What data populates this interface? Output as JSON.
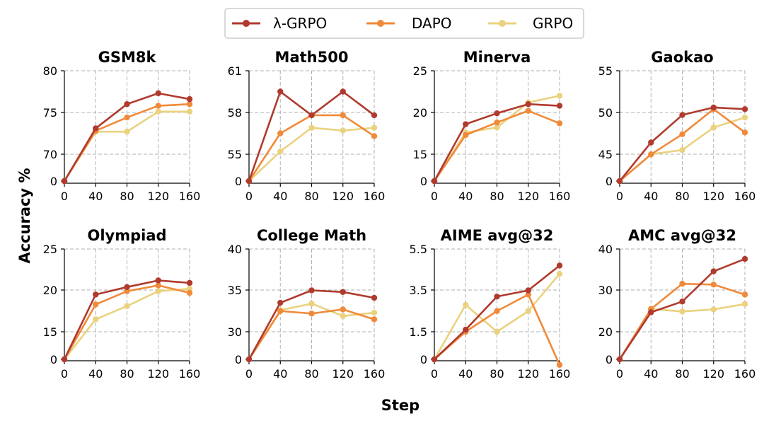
{
  "chart_data": {
    "type": "line",
    "xlabel": "Step",
    "ylabel": "Accuracy %",
    "legend": [
      {
        "name": "λ-GRPO",
        "color": "#b03a2e"
      },
      {
        "name": "DAPO",
        "color": "#f08a3a"
      },
      {
        "name": "GRPO",
        "color": "#ead27f"
      }
    ],
    "panels": [
      {
        "title": "GSM8k",
        "x": [
          0,
          40,
          80,
          120,
          160
        ],
        "yticks": [
          "0",
          "70",
          "75",
          "80"
        ],
        "series": [
          {
            "name": "λ-GRPO",
            "values": [
              0,
              73.1,
              76.0,
              77.3,
              76.6
            ]
          },
          {
            "name": "DAPO",
            "values": [
              0,
              72.8,
              74.4,
              75.8,
              76.0
            ]
          },
          {
            "name": "GRPO",
            "values": [
              0,
              72.7,
              72.7,
              75.1,
              75.1
            ]
          }
        ]
      },
      {
        "title": "Math500",
        "x": [
          0,
          40,
          80,
          120,
          160
        ],
        "yticks": [
          "0",
          "55",
          "58",
          "61"
        ],
        "series": [
          {
            "name": "λ-GRPO",
            "values": [
              0,
              59.5,
              57.8,
              59.5,
              57.8
            ]
          },
          {
            "name": "DAPO",
            "values": [
              0,
              56.5,
              57.8,
              57.8,
              56.3
            ]
          },
          {
            "name": "GRPO",
            "values": [
              0,
              55.2,
              56.9,
              56.7,
              56.9
            ]
          }
        ]
      },
      {
        "title": "Minerva",
        "x": [
          0,
          40,
          80,
          120,
          160
        ],
        "yticks": [
          "0",
          "15",
          "20",
          "25"
        ],
        "series": [
          {
            "name": "λ-GRPO",
            "values": [
              0,
              18.6,
              19.9,
              21.0,
              20.8
            ]
          },
          {
            "name": "DAPO",
            "values": [
              0,
              17.3,
              18.8,
              20.2,
              18.7
            ]
          },
          {
            "name": "GRPO",
            "values": [
              0,
              17.6,
              18.2,
              21.2,
              22.0
            ]
          }
        ]
      },
      {
        "title": "Gaokao",
        "x": [
          0,
          40,
          80,
          120,
          160
        ],
        "yticks": [
          "0",
          "45",
          "50",
          "55"
        ],
        "series": [
          {
            "name": "λ-GRPO",
            "values": [
              0,
              46.4,
              49.7,
              50.6,
              50.4
            ]
          },
          {
            "name": "DAPO",
            "values": [
              0,
              44.6,
              47.4,
              50.4,
              47.6
            ]
          },
          {
            "name": "GRPO",
            "values": [
              0,
              45.0,
              45.5,
              48.2,
              49.4
            ]
          }
        ]
      },
      {
        "title": "Olympiad",
        "x": [
          0,
          40,
          80,
          120,
          160
        ],
        "yticks": [
          "0",
          "15",
          "20",
          "25"
        ],
        "series": [
          {
            "name": "λ-GRPO",
            "values": [
              0,
              19.5,
              20.4,
              21.2,
              20.9
            ]
          },
          {
            "name": "DAPO",
            "values": [
              0,
              18.3,
              19.9,
              20.6,
              19.7
            ]
          },
          {
            "name": "GRPO",
            "values": [
              0,
              16.5,
              18.1,
              19.9,
              20.2
            ]
          }
        ]
      },
      {
        "title": "College Math",
        "x": [
          0,
          40,
          80,
          120,
          160
        ],
        "yticks": [
          "0",
          "30",
          "35",
          "40"
        ],
        "series": [
          {
            "name": "λ-GRPO",
            "values": [
              0,
              33.5,
              35.0,
              34.8,
              34.1
            ]
          },
          {
            "name": "DAPO",
            "values": [
              0,
              32.5,
              32.2,
              32.7,
              31.5
            ]
          },
          {
            "name": "GRPO",
            "values": [
              0,
              32.6,
              33.4,
              31.9,
              32.3
            ]
          }
        ]
      },
      {
        "title": "AIME avg@32",
        "x": [
          0,
          40,
          80,
          120,
          160
        ],
        "yticks": [
          "0",
          "1.5",
          "3.5",
          "5.5"
        ],
        "series": [
          {
            "name": "λ-GRPO",
            "values": [
              0,
              1.6,
              3.2,
              3.5,
              4.7
            ]
          },
          {
            "name": "DAPO",
            "values": [
              0,
              1.5,
              2.5,
              3.3,
              -0.3
            ]
          },
          {
            "name": "GRPO",
            "values": [
              0,
              2.8,
              1.5,
              2.5,
              4.3
            ]
          }
        ]
      },
      {
        "title": "AMC avg@32",
        "x": [
          0,
          40,
          80,
          120,
          160
        ],
        "yticks": [
          "0",
          "20",
          "30",
          "40"
        ],
        "series": [
          {
            "name": "λ-GRPO",
            "values": [
              0,
              24.7,
              27.3,
              34.6,
              37.6
            ]
          },
          {
            "name": "DAPO",
            "values": [
              0,
              25.5,
              31.6,
              31.4,
              29.0
            ]
          },
          {
            "name": "GRPO",
            "values": [
              0,
              25.5,
              24.9,
              25.4,
              26.7
            ]
          }
        ]
      }
    ]
  }
}
